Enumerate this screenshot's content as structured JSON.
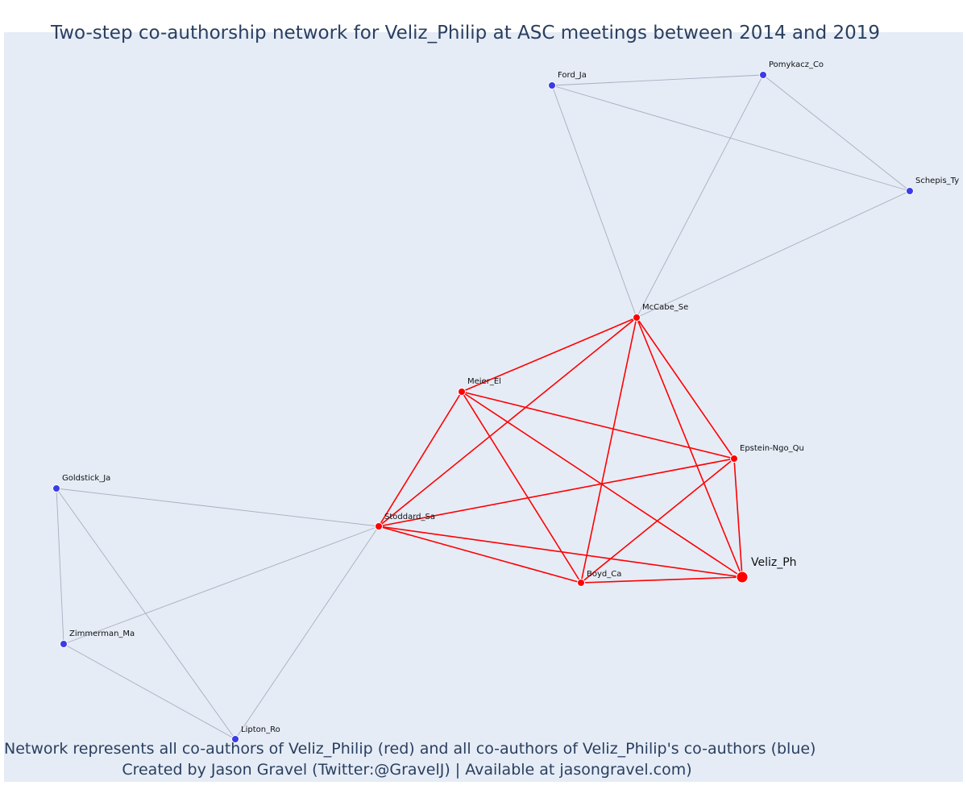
{
  "title": "Two-step co-authorship network for Veliz_Philip at ASC meetings between 2014 and 2019",
  "caption": {
    "line1": "Network represents all co-authors of Veliz_Philip (red) and all co-authors of Veliz_Philip's co-authors (blue)",
    "line2": "Created by Jason Gravel (Twitter:@GravelJ) | Available at jasongravel.com)"
  },
  "colors": {
    "background": "#e5ecf6",
    "first_step": "#ff0000",
    "second_step": "#3b3be8",
    "first_step_edge": "#ff0000",
    "second_step_edge": "#a8aec0",
    "text": "#2a3f5f"
  },
  "network": {
    "nodes": [
      {
        "id": "Veliz_Ph",
        "label": "Veliz_Ph",
        "group": "focal"
      },
      {
        "id": "Boyd_Ca",
        "label": "Boyd_Ca",
        "group": "co-author"
      },
      {
        "id": "Stoddard_Sa",
        "label": "Stoddard_Sa",
        "group": "co-author"
      },
      {
        "id": "Epstein-Ngo_Qu",
        "label": "Epstein-Ngo_Qu",
        "group": "co-author"
      },
      {
        "id": "Meier_El",
        "label": "Meier_El",
        "group": "co-author"
      },
      {
        "id": "McCabe_Se",
        "label": "McCabe_Se",
        "group": "co-author"
      },
      {
        "id": "Ford_Ja",
        "label": "Ford_Ja",
        "group": "second-step"
      },
      {
        "id": "Pomykacz_Co",
        "label": "Pomykacz_Co",
        "group": "second-step"
      },
      {
        "id": "Schepis_Ty",
        "label": "Schepis_Ty",
        "group": "second-step"
      },
      {
        "id": "Goldstick_Ja",
        "label": "Goldstick_Ja",
        "group": "second-step"
      },
      {
        "id": "Zimmerman_Ma",
        "label": "Zimmerman_Ma",
        "group": "second-step"
      },
      {
        "id": "Lipton_Ro",
        "label": "Lipton_Ro",
        "group": "second-step"
      }
    ],
    "edges": [
      {
        "source": "Veliz_Ph",
        "target": "Boyd_Ca",
        "type": "first"
      },
      {
        "source": "Veliz_Ph",
        "target": "Stoddard_Sa",
        "type": "first"
      },
      {
        "source": "Veliz_Ph",
        "target": "Epstein-Ngo_Qu",
        "type": "first"
      },
      {
        "source": "Veliz_Ph",
        "target": "Meier_El",
        "type": "first"
      },
      {
        "source": "Veliz_Ph",
        "target": "McCabe_Se",
        "type": "first"
      },
      {
        "source": "Boyd_Ca",
        "target": "Stoddard_Sa",
        "type": "first"
      },
      {
        "source": "Boyd_Ca",
        "target": "Epstein-Ngo_Qu",
        "type": "first"
      },
      {
        "source": "Boyd_Ca",
        "target": "Meier_El",
        "type": "first"
      },
      {
        "source": "Boyd_Ca",
        "target": "McCabe_Se",
        "type": "first"
      },
      {
        "source": "Stoddard_Sa",
        "target": "Epstein-Ngo_Qu",
        "type": "first"
      },
      {
        "source": "Stoddard_Sa",
        "target": "Meier_El",
        "type": "first"
      },
      {
        "source": "Stoddard_Sa",
        "target": "McCabe_Se",
        "type": "first"
      },
      {
        "source": "Epstein-Ngo_Qu",
        "target": "Meier_El",
        "type": "first"
      },
      {
        "source": "Epstein-Ngo_Qu",
        "target": "McCabe_Se",
        "type": "first"
      },
      {
        "source": "Meier_El",
        "target": "McCabe_Se",
        "type": "first"
      },
      {
        "source": "McCabe_Se",
        "target": "Ford_Ja",
        "type": "second"
      },
      {
        "source": "McCabe_Se",
        "target": "Pomykacz_Co",
        "type": "second"
      },
      {
        "source": "McCabe_Se",
        "target": "Schepis_Ty",
        "type": "second"
      },
      {
        "source": "Ford_Ja",
        "target": "Pomykacz_Co",
        "type": "second"
      },
      {
        "source": "Ford_Ja",
        "target": "Schepis_Ty",
        "type": "second"
      },
      {
        "source": "Pomykacz_Co",
        "target": "Schepis_Ty",
        "type": "second"
      },
      {
        "source": "Stoddard_Sa",
        "target": "Goldstick_Ja",
        "type": "second"
      },
      {
        "source": "Stoddard_Sa",
        "target": "Zimmerman_Ma",
        "type": "second"
      },
      {
        "source": "Stoddard_Sa",
        "target": "Lipton_Ro",
        "type": "second"
      },
      {
        "source": "Goldstick_Ja",
        "target": "Zimmerman_Ma",
        "type": "second"
      },
      {
        "source": "Goldstick_Ja",
        "target": "Lipton_Ro",
        "type": "second"
      },
      {
        "source": "Zimmerman_Ma",
        "target": "Lipton_Ro",
        "type": "second"
      }
    ]
  }
}
